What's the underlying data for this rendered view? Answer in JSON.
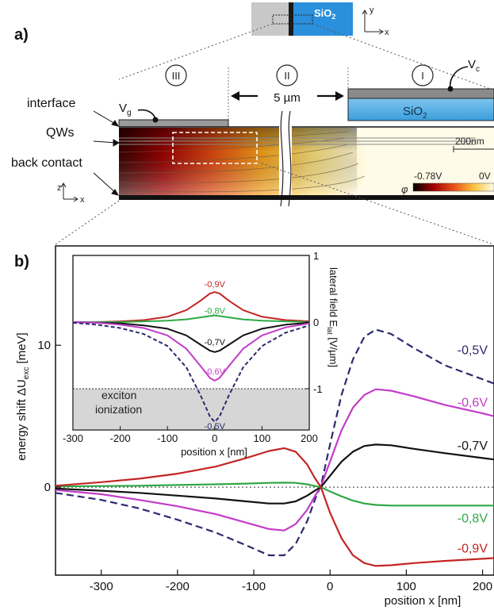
{
  "panel_a": {
    "label": "a)",
    "inset_material": "SiO",
    "inset_sub": "2",
    "axis_y": "y",
    "axis_x": "x",
    "axis_z": "z",
    "region_iii": "III",
    "region_ii": "II",
    "region_i": "I",
    "gap_label": "5 µm",
    "vc_label": "V",
    "vc_sub": "c",
    "vg_label": "V",
    "vg_sub": "g",
    "sio2_label": "SiO",
    "sio2_sub": "2",
    "interface_label": "interface",
    "qws_label": "QWs",
    "back_contact_label": "back contact",
    "scale_label": "200nm",
    "phi_symbol": "φ",
    "colorbar_min": "-0.78V",
    "colorbar_max": "0V"
  },
  "panel_b": {
    "label": "b)"
  },
  "chart_data": [
    {
      "type": "line",
      "ylabel": "energy shift ΔU",
      "ylabel_sub": "exc",
      "ylabel_unit": " [meV]",
      "xlabel": "position x [nm]",
      "xlim": [
        -360,
        215
      ],
      "ylim": [
        -6.2,
        17
      ],
      "xticks": [
        "-300",
        "-200",
        "-100",
        "0",
        "100",
        "200"
      ],
      "xtick_values": [
        -300,
        -200,
        -100,
        0,
        100,
        200
      ],
      "yticks": [
        "0",
        "10"
      ],
      "ytick_values": [
        0,
        10
      ],
      "zero_line_dotted": true,
      "series": [
        {
          "name": "-0,5V",
          "color": "#2c2a6e",
          "dashed": true,
          "x": [
            -360,
            -300,
            -250,
            -200,
            -150,
            -110,
            -80,
            -60,
            -45,
            -30,
            -20,
            -12,
            0,
            15,
            30,
            45,
            60,
            80,
            110,
            150,
            200,
            215
          ],
          "y": [
            -0.4,
            -0.9,
            -1.5,
            -2.3,
            -3.2,
            -4.1,
            -4.8,
            -4.8,
            -4.0,
            -2.4,
            -0.9,
            0.1,
            3.0,
            6.5,
            9.0,
            10.6,
            11.1,
            10.8,
            9.8,
            8.6,
            7.6,
            7.3
          ]
        },
        {
          "name": "-0,6V",
          "color": "#c23cc8",
          "dashed": false,
          "x": [
            -360,
            -300,
            -250,
            -200,
            -150,
            -110,
            -80,
            -60,
            -45,
            -30,
            -20,
            -12,
            0,
            15,
            30,
            45,
            60,
            80,
            110,
            150,
            200,
            215
          ],
          "y": [
            -0.2,
            -0.5,
            -0.9,
            -1.35,
            -1.9,
            -2.5,
            -2.95,
            -3.05,
            -2.6,
            -1.6,
            -0.65,
            0.05,
            1.8,
            4.0,
            5.6,
            6.5,
            6.9,
            6.8,
            6.4,
            5.8,
            5.2,
            5.0
          ]
        },
        {
          "name": "-0,7V",
          "color": "#111111",
          "dashed": false,
          "x": [
            -360,
            -300,
            -250,
            -200,
            -150,
            -110,
            -80,
            -60,
            -45,
            -30,
            -20,
            -12,
            0,
            15,
            30,
            45,
            60,
            80,
            110,
            150,
            200,
            215
          ],
          "y": [
            -0.1,
            -0.25,
            -0.4,
            -0.6,
            -0.8,
            -1.0,
            -1.15,
            -1.15,
            -1.0,
            -0.6,
            -0.25,
            0.0,
            0.8,
            1.8,
            2.5,
            2.9,
            3.0,
            2.95,
            2.7,
            2.4,
            2.05,
            1.95
          ]
        },
        {
          "name": "-0,8V",
          "color": "#2fa844",
          "dashed": false,
          "x": [
            -360,
            -300,
            -250,
            -200,
            -150,
            -110,
            -80,
            -60,
            -45,
            -30,
            -20,
            -12,
            0,
            15,
            30,
            45,
            60,
            80,
            110,
            150,
            200,
            215
          ],
          "y": [
            0.05,
            0.08,
            0.1,
            0.15,
            0.2,
            0.25,
            0.3,
            0.32,
            0.3,
            0.2,
            0.08,
            0.0,
            -0.3,
            -0.65,
            -0.95,
            -1.15,
            -1.25,
            -1.3,
            -1.3,
            -1.3,
            -1.3,
            -1.3
          ]
        },
        {
          "name": "-0,9V",
          "color": "#c42525",
          "dashed": false,
          "x": [
            -360,
            -300,
            -250,
            -200,
            -150,
            -110,
            -80,
            -60,
            -45,
            -30,
            -20,
            -12,
            0,
            15,
            30,
            45,
            60,
            80,
            110,
            150,
            200,
            215
          ],
          "y": [
            0.1,
            0.35,
            0.6,
            0.95,
            1.45,
            2.05,
            2.55,
            2.75,
            2.5,
            1.6,
            0.65,
            0.0,
            -1.8,
            -3.6,
            -4.8,
            -5.35,
            -5.55,
            -5.5,
            -5.35,
            -5.2,
            -5.05,
            -5.0
          ]
        }
      ],
      "series_labels": [
        "-0,5V",
        "-0,6V",
        "-0,7V",
        "-0,8V",
        "-0,9V"
      ]
    },
    {
      "type": "line",
      "xlabel": "position x [nm]",
      "ylabel": "lateral field E",
      "ylabel_sub": "lat",
      "ylabel_unit": " [V/µm]",
      "xlim": [
        -300,
        200
      ],
      "ylim": [
        -1.62,
        1.0
      ],
      "xticks": [
        "-300",
        "-200",
        "-100",
        "0",
        "100",
        "200"
      ],
      "xtick_values": [
        -300,
        -200,
        -100,
        0,
        100,
        200
      ],
      "yticks": [
        "1",
        "0",
        "-1"
      ],
      "ytick_values": [
        1,
        0,
        -1
      ],
      "ionization_threshold": -1,
      "ionization_label_1": "exciton",
      "ionization_label_2": "ionization",
      "series": [
        {
          "name": "-0,9V",
          "color": "#c42525",
          "dashed": false,
          "x": [
            -300,
            -250,
            -200,
            -150,
            -100,
            -60,
            -30,
            -10,
            0,
            10,
            30,
            60,
            100,
            150,
            200
          ],
          "y": [
            0.0,
            0.0,
            0.01,
            0.03,
            0.08,
            0.18,
            0.32,
            0.43,
            0.45,
            0.43,
            0.32,
            0.18,
            0.08,
            0.03,
            0.01
          ]
        },
        {
          "name": "-0,8V",
          "color": "#2fa844",
          "dashed": false,
          "x": [
            -300,
            -250,
            -200,
            -150,
            -100,
            -60,
            -30,
            -10,
            0,
            10,
            30,
            60,
            100,
            150,
            200
          ],
          "y": [
            0.0,
            0.0,
            0.0,
            0.01,
            0.02,
            0.04,
            0.07,
            0.09,
            0.1,
            0.09,
            0.07,
            0.04,
            0.02,
            0.01,
            0.0
          ]
        },
        {
          "name": "-0,7V",
          "color": "#111111",
          "dashed": false,
          "x": [
            -300,
            -250,
            -200,
            -150,
            -100,
            -60,
            -30,
            -10,
            0,
            10,
            30,
            60,
            100,
            150,
            200
          ],
          "y": [
            0.0,
            -0.01,
            -0.02,
            -0.05,
            -0.1,
            -0.2,
            -0.34,
            -0.43,
            -0.45,
            -0.43,
            -0.34,
            -0.2,
            -0.1,
            -0.04,
            -0.01
          ]
        },
        {
          "name": "-0,6V",
          "color": "#c23cc8",
          "dashed": false,
          "x": [
            -300,
            -250,
            -200,
            -150,
            -100,
            -60,
            -30,
            -10,
            0,
            10,
            30,
            60,
            100,
            150,
            200
          ],
          "y": [
            0.0,
            -0.01,
            -0.04,
            -0.09,
            -0.2,
            -0.4,
            -0.66,
            -0.84,
            -0.88,
            -0.84,
            -0.66,
            -0.4,
            -0.2,
            -0.08,
            -0.02
          ]
        },
        {
          "name": "-0,5V",
          "color": "#2c2a6e",
          "dashed": true,
          "x": [
            -300,
            -250,
            -200,
            -150,
            -100,
            -60,
            -30,
            -10,
            0,
            10,
            30,
            60,
            100,
            150,
            200
          ],
          "y": [
            -0.01,
            -0.04,
            -0.09,
            -0.18,
            -0.36,
            -0.68,
            -1.1,
            -1.42,
            -1.5,
            -1.42,
            -1.1,
            -0.68,
            -0.36,
            -0.16,
            -0.05
          ]
        }
      ],
      "series_labels": [
        {
          "text": "-0,9V",
          "color": "#c42525",
          "x": 0,
          "y": 0.57
        },
        {
          "text": "-0,8V",
          "color": "#2fa844",
          "x": 0,
          "y": 0.17
        },
        {
          "text": "-0,7V",
          "color": "#111111",
          "x": 0,
          "y": -0.3
        },
        {
          "text": "-0,6V",
          "color": "#c23cc8",
          "x": 0,
          "y": -0.74
        },
        {
          "text": "-0,5V",
          "color": "#2c2a6e",
          "x": 0,
          "y": -1.56
        }
      ]
    }
  ]
}
